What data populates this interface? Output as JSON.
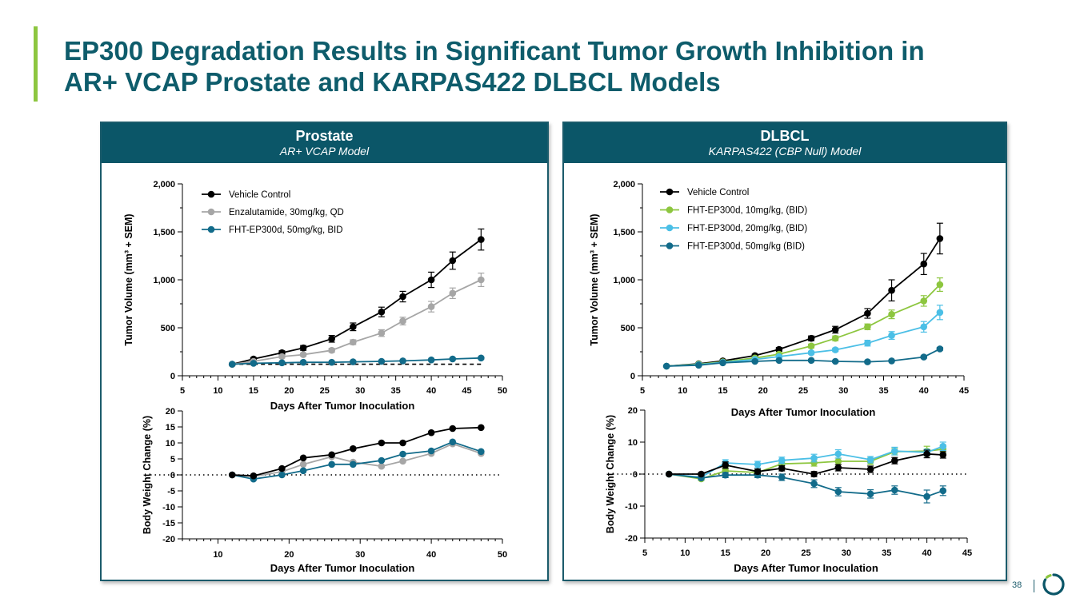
{
  "title_lines": [
    "EP300 Degradation Results in Significant Tumor Growth Inhibition in",
    "AR+ VCAP Prostate and KARPAS422 DLBCL Models"
  ],
  "page_number": "38",
  "colors": {
    "brand": "#0b5668",
    "accent": "#8dc63f",
    "title": "#0e5c6b"
  },
  "panels": {
    "left": {
      "title": "Prostate",
      "subtitle": "AR+ VCAP Model"
    },
    "right": {
      "title": "DLBCL",
      "subtitle": "KARPAS422 (CBP Null) Model"
    }
  },
  "chart_data": [
    {
      "id": "prostate-tumor-volume",
      "type": "line",
      "xlabel": "Days After Tumor Inoculation",
      "ylabel": "Tumor Volume (mm³ + SEM)",
      "xlim": [
        5,
        50
      ],
      "ylim": [
        0,
        2000
      ],
      "xticks": [
        5,
        10,
        15,
        20,
        25,
        30,
        35,
        40,
        45,
        50
      ],
      "yticks": [
        0,
        500,
        1000,
        1500,
        2000
      ],
      "ytick_labels": [
        "0",
        "500",
        "1,000",
        "1,500",
        "2,000"
      ],
      "legend": "top-left",
      "reference_line": {
        "y": 120,
        "x_from": 12,
        "x_to": 47,
        "style": "dashed"
      },
      "x": [
        12,
        15,
        19,
        22,
        26,
        29,
        33,
        36,
        40,
        43,
        47
      ],
      "series": [
        {
          "name": "Vehicle  Control",
          "color": "#000000",
          "values": [
            120,
            175,
            240,
            290,
            385,
            510,
            665,
            825,
            1000,
            1200,
            1420
          ],
          "errors": [
            0,
            15,
            20,
            25,
            35,
            40,
            50,
            55,
            80,
            90,
            110
          ]
        },
        {
          "name": "Enzalutamide, 30mg/kg, QD",
          "color": "#a6a6a6",
          "values": [
            120,
            150,
            200,
            220,
            265,
            350,
            445,
            570,
            720,
            860,
            1000
          ],
          "errors": [
            0,
            10,
            15,
            15,
            20,
            25,
            35,
            40,
            55,
            55,
            70
          ]
        },
        {
          "name": "FHT-EP300d, 50mg/kg, BID",
          "color": "#126b8a",
          "values": [
            120,
            130,
            135,
            140,
            140,
            145,
            150,
            155,
            165,
            175,
            185
          ],
          "errors": [
            0,
            5,
            5,
            5,
            5,
            5,
            5,
            8,
            8,
            8,
            10
          ]
        }
      ]
    },
    {
      "id": "prostate-body-weight",
      "type": "line",
      "xlabel": "Days After Tumor Inoculation",
      "ylabel": "Body Weight Change (%)",
      "xlim": [
        5,
        50
      ],
      "ylim": [
        -20,
        20
      ],
      "xticks": [
        10,
        20,
        30,
        40,
        50
      ],
      "yticks": [
        -20,
        -15,
        -10,
        -5,
        0,
        5,
        10,
        15,
        20
      ],
      "reference_line": {
        "y": 0,
        "style": "dotted"
      },
      "x": [
        12,
        15,
        19,
        22,
        26,
        29,
        33,
        36,
        40,
        43,
        47
      ],
      "series": [
        {
          "name": "Enzalutamide, 30mg/kg, QD",
          "color": "#a6a6a6",
          "values": [
            0,
            -0.5,
            1,
            3.3,
            5.7,
            4,
            2.7,
            4.3,
            6.7,
            9.7,
            6.7
          ]
        },
        {
          "name": "FHT-EP300d, 50mg/kg, BID",
          "color": "#126b8a",
          "values": [
            0,
            -1.3,
            0,
            1.3,
            3.3,
            3.3,
            4.5,
            6.5,
            7.5,
            10.3,
            7.3
          ]
        },
        {
          "name": "Vehicle  Control",
          "color": "#000000",
          "values": [
            0,
            -0.3,
            2,
            5.3,
            6.3,
            8.2,
            10,
            10,
            13.2,
            14.5,
            14.8
          ]
        }
      ]
    },
    {
      "id": "dlbcl-tumor-volume",
      "type": "line",
      "xlabel": "Days After Tumor Inoculation",
      "ylabel": "Tumor Volume (mm³ + SEM)",
      "xlim": [
        5,
        45
      ],
      "ylim": [
        0,
        2000
      ],
      "xticks": [
        5,
        10,
        15,
        20,
        25,
        30,
        35,
        40,
        45
      ],
      "yticks": [
        0,
        500,
        1000,
        1500,
        2000
      ],
      "ytick_labels": [
        "0",
        "500",
        "1,000",
        "1,500",
        "2,000"
      ],
      "legend": "top-left",
      "x": [
        8,
        12,
        15,
        19,
        22,
        26,
        29,
        33,
        36,
        40,
        42
      ],
      "series": [
        {
          "name": "Vehicle Control",
          "color": "#000000",
          "values": [
            100,
            125,
            155,
            210,
            275,
            390,
            480,
            650,
            890,
            1165,
            1430
          ],
          "errors": [
            0,
            8,
            10,
            15,
            20,
            25,
            35,
            50,
            110,
            110,
            160
          ]
        },
        {
          "name": "FHT-EP300d, 10mg/kg, (BID)",
          "color": "#8dc63f",
          "values": [
            100,
            120,
            145,
            185,
            225,
            310,
            390,
            510,
            640,
            780,
            950
          ],
          "errors": [
            0,
            8,
            10,
            12,
            15,
            20,
            25,
            30,
            45,
            55,
            70
          ]
        },
        {
          "name": "FHT-EP300d, 20mg/kg, (BID)",
          "color": "#4bbfe6",
          "values": [
            100,
            115,
            140,
            170,
            200,
            240,
            270,
            340,
            420,
            510,
            660
          ],
          "errors": [
            0,
            8,
            10,
            10,
            12,
            15,
            18,
            30,
            40,
            55,
            75
          ]
        },
        {
          "name": "FHT-EP300d, 50mg/kg (BID)",
          "color": "#126b8a",
          "values": [
            100,
            110,
            135,
            150,
            160,
            160,
            150,
            145,
            155,
            195,
            280
          ],
          "errors": [
            0,
            5,
            8,
            8,
            8,
            10,
            10,
            10,
            10,
            12,
            15
          ]
        }
      ]
    },
    {
      "id": "dlbcl-body-weight",
      "type": "line",
      "xlabel": "Days After Tumor Inoculation",
      "ylabel": "Body Weight Change (%)",
      "xlim": [
        5,
        45
      ],
      "ylim": [
        -20,
        20
      ],
      "xticks": [
        5,
        10,
        15,
        20,
        25,
        30,
        35,
        40,
        45
      ],
      "yticks": [
        -20,
        -10,
        0,
        10,
        20
      ],
      "reference_line": {
        "y": 0,
        "style": "dotted"
      },
      "x": [
        8,
        12,
        15,
        19,
        22,
        26,
        29,
        33,
        36,
        40,
        42
      ],
      "series": [
        {
          "name": "FHT-EP300d, 10mg/kg, (BID)",
          "color": "#8dc63f",
          "values": [
            0,
            -1.5,
            1,
            0.5,
            3.2,
            3.5,
            4,
            4,
            7,
            7.2,
            7.8
          ],
          "errors": [
            0,
            0.5,
            1,
            1,
            1,
            1,
            1,
            1,
            1,
            1.5,
            1.2
          ]
        },
        {
          "name": "FHT-EP300d, 20mg/kg, (BID)",
          "color": "#4bbfe6",
          "values": [
            0,
            -1,
            3.5,
            3,
            4.3,
            5,
            6.3,
            4.5,
            7.2,
            6.8,
            8.7
          ],
          "errors": [
            0,
            0.8,
            1,
            1,
            1,
            1.2,
            1.3,
            1,
            1.2,
            1,
            1.3
          ]
        },
        {
          "name": "FHT-EP300d, 50mg/kg (BID)",
          "color": "#126b8a",
          "values": [
            0,
            -1.2,
            -0.3,
            -0.3,
            -1,
            -3,
            -5.5,
            -6.2,
            -5,
            -7,
            -5.2
          ],
          "errors": [
            0,
            0.5,
            0.8,
            0.8,
            1,
            1.2,
            1.3,
            1.3,
            1.3,
            2,
            1.5
          ]
        },
        {
          "name": "Vehicle Control",
          "color": "#000000",
          "values": [
            0,
            0,
            2.8,
            0.8,
            1.8,
            0,
            2,
            1.5,
            4.2,
            6.3,
            6
          ],
          "errors": [
            0,
            0.5,
            1,
            0.8,
            0.8,
            0.8,
            1,
            1,
            1,
            1.2,
            1
          ]
        }
      ]
    }
  ]
}
